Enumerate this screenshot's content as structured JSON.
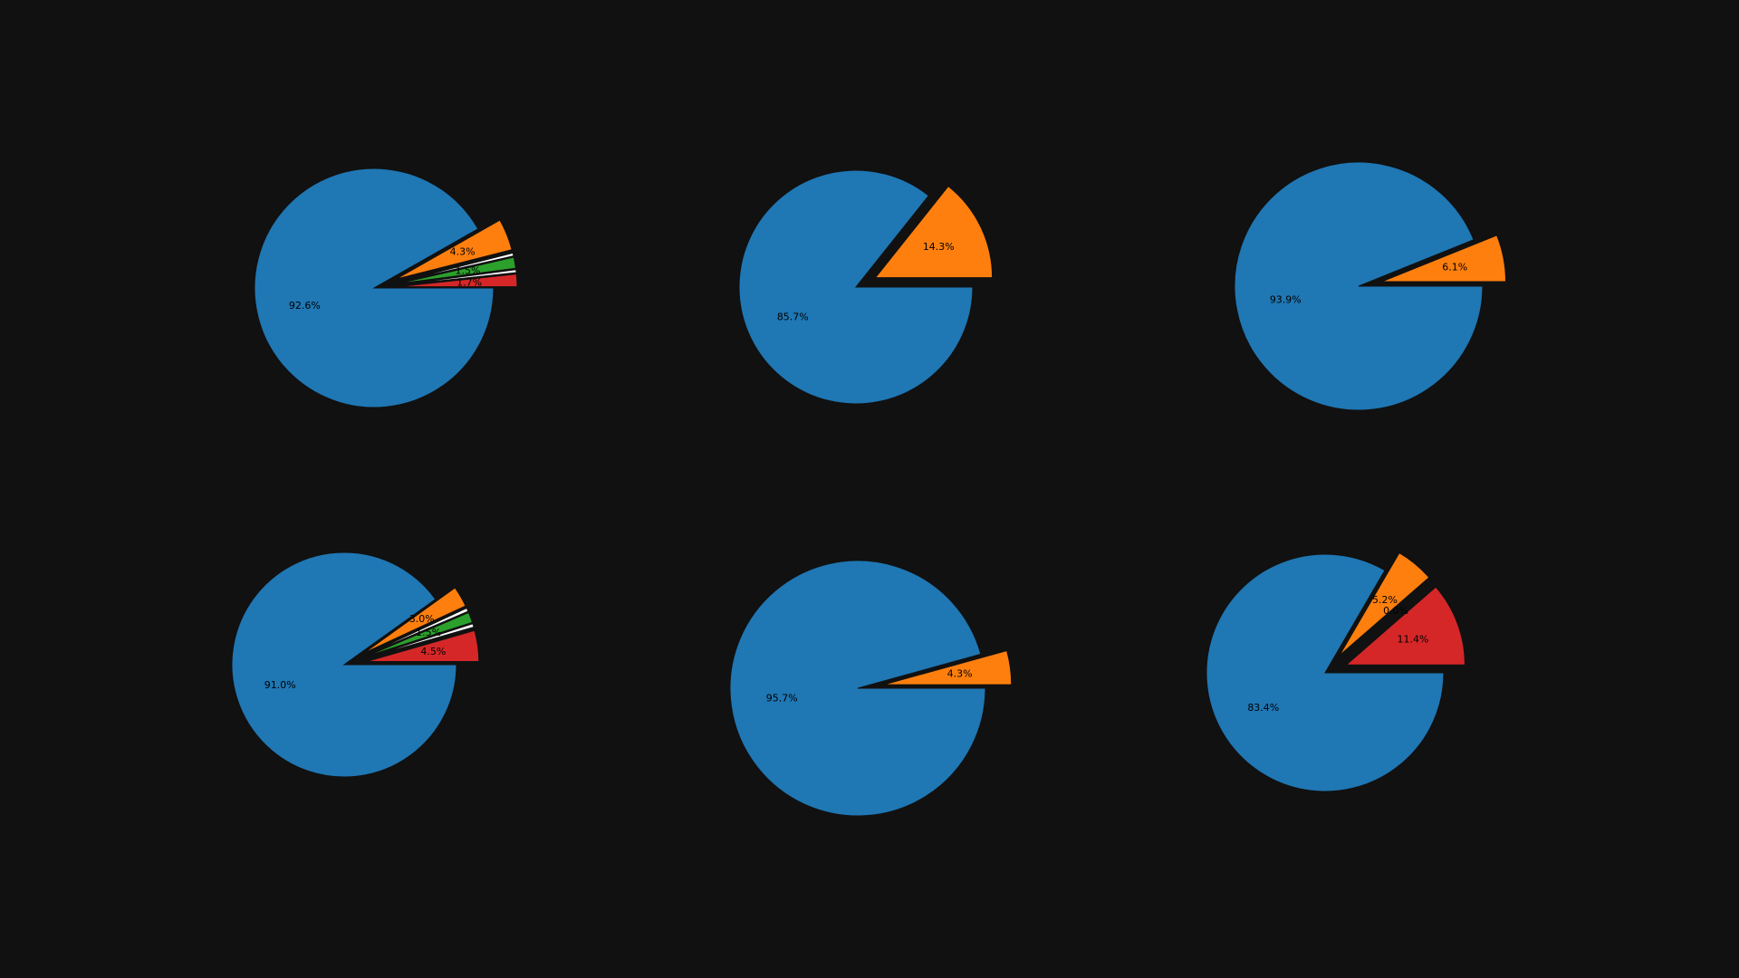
{
  "background": "#111111",
  "colors": {
    "slice_blue": "#1f77b4",
    "slice_orange": "#ff7f0e",
    "slice_green": "#2ca02c",
    "slice_red": "#d62728",
    "slice_white": "#ffffff",
    "edge": "#111111"
  },
  "chart_data": [
    {
      "type": "pie",
      "slices": [
        {
          "label": "92.6%",
          "value": 92.6,
          "color": "#1f77b4",
          "exploded": false
        },
        {
          "label": "4.3%",
          "value": 4.3,
          "color": "#ff7f0e",
          "exploded": true
        },
        {
          "label": "",
          "value": 0.4,
          "color": "#ffffff",
          "exploded": true
        },
        {
          "label": "1.5%",
          "value": 1.5,
          "color": "#2ca02c",
          "exploded": true
        },
        {
          "label": "",
          "value": 0.4,
          "color": "#ffffff",
          "exploded": true
        },
        {
          "label": "1.7%",
          "value": 1.7,
          "color": "#d62728",
          "exploded": true
        }
      ]
    },
    {
      "type": "pie",
      "slices": [
        {
          "label": "85.7%",
          "value": 85.7,
          "color": "#1f77b4",
          "exploded": false
        },
        {
          "label": "14.3%",
          "value": 14.3,
          "color": "#ff7f0e",
          "exploded": true
        }
      ]
    },
    {
      "type": "pie",
      "slices": [
        {
          "label": "93.9%",
          "value": 93.9,
          "color": "#1f77b4",
          "exploded": false
        },
        {
          "label": "6.1%",
          "value": 6.1,
          "color": "#ff7f0e",
          "exploded": true
        }
      ]
    },
    {
      "type": "pie",
      "slices": [
        {
          "label": "91.0%",
          "value": 91.0,
          "color": "#1f77b4",
          "exploded": false
        },
        {
          "label": "3.0%",
          "value": 3.0,
          "color": "#ff7f0e",
          "exploded": true
        },
        {
          "label": "",
          "value": 0.5,
          "color": "#ffffff",
          "exploded": true
        },
        {
          "label": "1.5%",
          "value": 1.5,
          "color": "#2ca02c",
          "exploded": true
        },
        {
          "label": "",
          "value": 0.5,
          "color": "#ffffff",
          "exploded": true
        },
        {
          "label": "4.5%",
          "value": 4.5,
          "color": "#d62728",
          "exploded": true
        }
      ]
    },
    {
      "type": "pie",
      "slices": [
        {
          "label": "95.7%",
          "value": 95.7,
          "color": "#1f77b4",
          "exploded": false
        },
        {
          "label": "4.3%",
          "value": 4.3,
          "color": "#ff7f0e",
          "exploded": true
        }
      ]
    },
    {
      "type": "pie",
      "slices": [
        {
          "label": "83.4%",
          "value": 83.4,
          "color": "#1f77b4",
          "exploded": false
        },
        {
          "label": "5.2%",
          "value": 5.2,
          "color": "#ff7f0e",
          "exploded": true
        },
        {
          "label": "0.0%",
          "value": 0.0,
          "color": "#2ca02c",
          "exploded": true
        },
        {
          "label": "11.4%",
          "value": 11.4,
          "color": "#d62728",
          "exploded": true
        }
      ]
    }
  ]
}
